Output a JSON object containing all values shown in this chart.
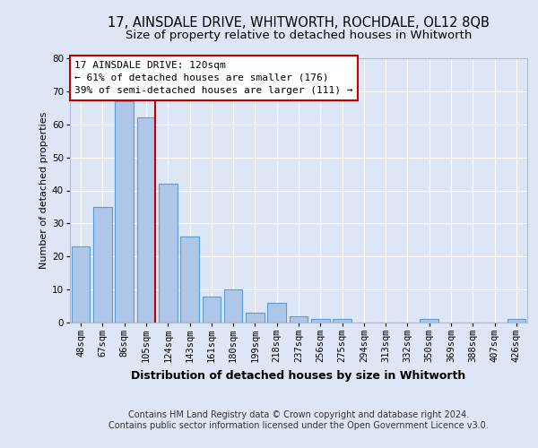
{
  "title1": "17, AINSDALE DRIVE, WHITWORTH, ROCHDALE, OL12 8QB",
  "title2": "Size of property relative to detached houses in Whitworth",
  "xlabel": "Distribution of detached houses by size in Whitworth",
  "ylabel": "Number of detached properties",
  "categories": [
    "48sqm",
    "67sqm",
    "86sqm",
    "105sqm",
    "124sqm",
    "143sqm",
    "161sqm",
    "180sqm",
    "199sqm",
    "218sqm",
    "237sqm",
    "256sqm",
    "275sqm",
    "294sqm",
    "313sqm",
    "332sqm",
    "350sqm",
    "369sqm",
    "388sqm",
    "407sqm",
    "426sqm"
  ],
  "values": [
    23,
    35,
    67,
    62,
    42,
    26,
    8,
    10,
    3,
    6,
    2,
    1,
    1,
    0,
    0,
    0,
    1,
    0,
    0,
    0,
    1
  ],
  "bar_color": "#aec6e8",
  "bar_edge_color": "#5b9bd5",
  "vline_x_index": 3,
  "vline_color": "#c00000",
  "annotation_line1": "17 AINSDALE DRIVE: 120sqm",
  "annotation_line2": "← 61% of detached houses are smaller (176)",
  "annotation_line3": "39% of semi-detached houses are larger (111) →",
  "annotation_box_color": "#ffffff",
  "annotation_box_edge_color": "#c00000",
  "ylim": [
    0,
    80
  ],
  "yticks": [
    0,
    10,
    20,
    30,
    40,
    50,
    60,
    70,
    80
  ],
  "footer1": "Contains HM Land Registry data © Crown copyright and database right 2024.",
  "footer2": "Contains public sector information licensed under the Open Government Licence v3.0.",
  "background_color": "#dce6f5",
  "plot_bg_color": "#dce6f5",
  "grid_color": "#ffffff",
  "title_fontsize": 10.5,
  "subtitle_fontsize": 9.5,
  "xlabel_fontsize": 9,
  "ylabel_fontsize": 8,
  "tick_fontsize": 7.5,
  "annotation_fontsize": 8,
  "footer_fontsize": 7
}
